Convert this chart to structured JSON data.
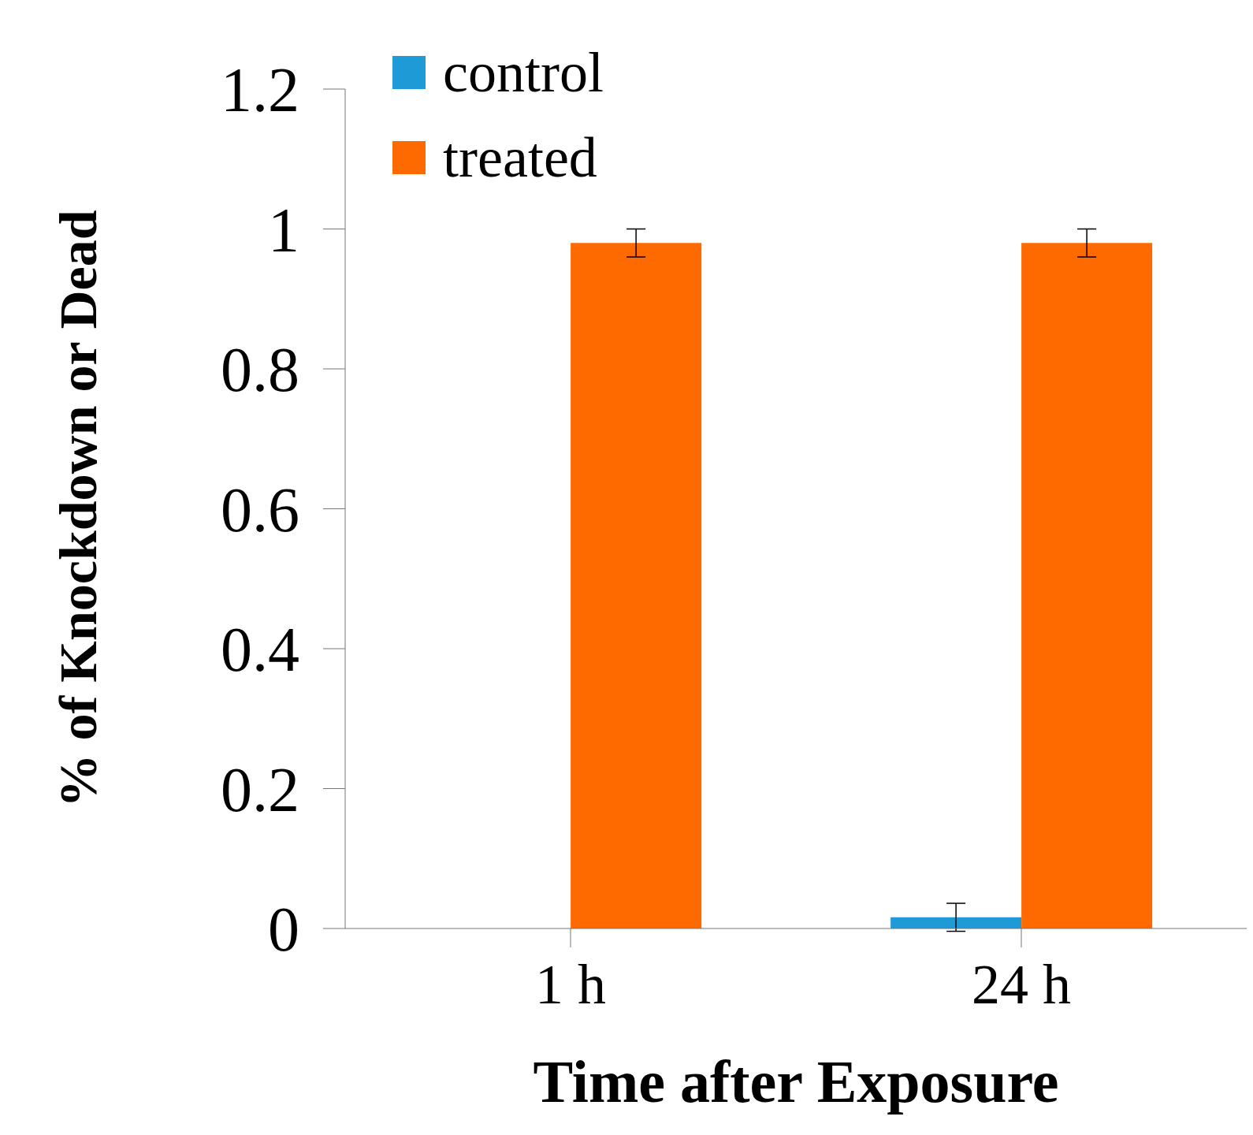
{
  "chart_data": {
    "type": "bar",
    "xlabel": "Time after Exposure",
    "ylabel": "% of Knockdown or Dead",
    "categories": [
      "1 h",
      "24 h"
    ],
    "series": [
      {
        "name": "control",
        "color": "#1e9ad6",
        "values": [
          0,
          0.016
        ],
        "errors": [
          null,
          0.02
        ]
      },
      {
        "name": "treated",
        "color": "#ff6a00",
        "values": [
          0.98,
          0.98
        ],
        "errors": [
          0.02,
          0.02
        ]
      }
    ],
    "ylim": [
      0,
      1.2
    ],
    "yticks": [
      0,
      0.2,
      0.4,
      0.6,
      0.8,
      1,
      1.2
    ],
    "grid": false,
    "legend": "top left"
  }
}
